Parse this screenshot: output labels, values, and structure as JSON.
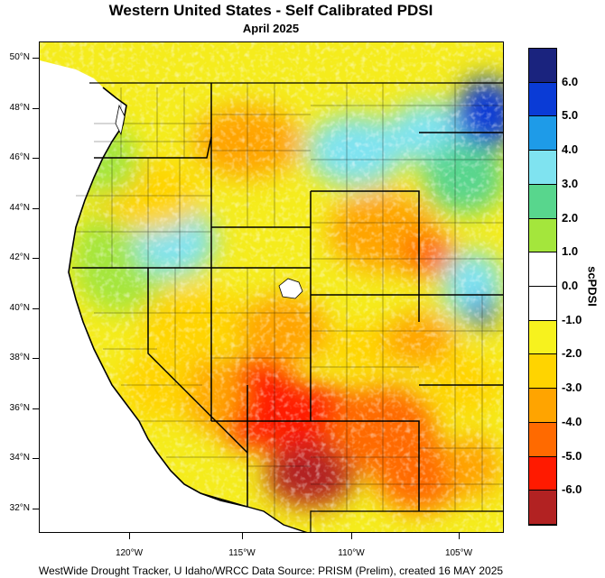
{
  "title": "Western United States - Self Calibrated PDSI",
  "subtitle": "April 2025",
  "footer": "WestWide Drought Tracker, U Idaho/WRCC Data Source: PRISM (Prelim), created 16 MAY 2025",
  "colorbar_title": "scPDSI",
  "lat_labels": [
    "50°N",
    "48°N",
    "46°N",
    "44°N",
    "42°N",
    "40°N",
    "38°N",
    "36°N",
    "34°N",
    "32°N"
  ],
  "lon_labels": [
    "120°W",
    "115°W",
    "110°W",
    "105°W"
  ],
  "colorbar": {
    "labels": [
      "6.0",
      "5.0",
      "4.0",
      "3.0",
      "2.0",
      "1.0",
      "0.0",
      "-1.0",
      "-2.0",
      "-3.0",
      "-4.0",
      "-5.0",
      "-6.0"
    ],
    "colors": [
      "#1a237e",
      "#0a3bd6",
      "#1e9be8",
      "#7fe3f0",
      "#58d68d",
      "#a4e63c",
      "#ffffff",
      "#ffffff",
      "#f7f21e",
      "#ffd400",
      "#ffa400",
      "#ff6a00",
      "#ff1a00",
      "#b22222"
    ]
  },
  "map": {
    "extent": {
      "lon_min": -124.8,
      "lon_max": -102.3,
      "lat_min": 31.0,
      "lat_max": 50.5
    },
    "value_colors": {
      "wet_extreme": "#1a237e",
      "wet_very": "#0a3bd6",
      "wet_moderate": "#1e9be8",
      "wet_light": "#7fe3f0",
      "wet_slight": "#58d68d",
      "wet_incipient": "#a4e63c",
      "normal": "#ffffff",
      "dry_incipient": "#f7f21e",
      "dry_mild": "#ffd400",
      "dry_moderate": "#ffa400",
      "dry_severe": "#ff6a00",
      "dry_extreme": "#ff1a00",
      "dry_exceptional": "#b22222"
    }
  }
}
